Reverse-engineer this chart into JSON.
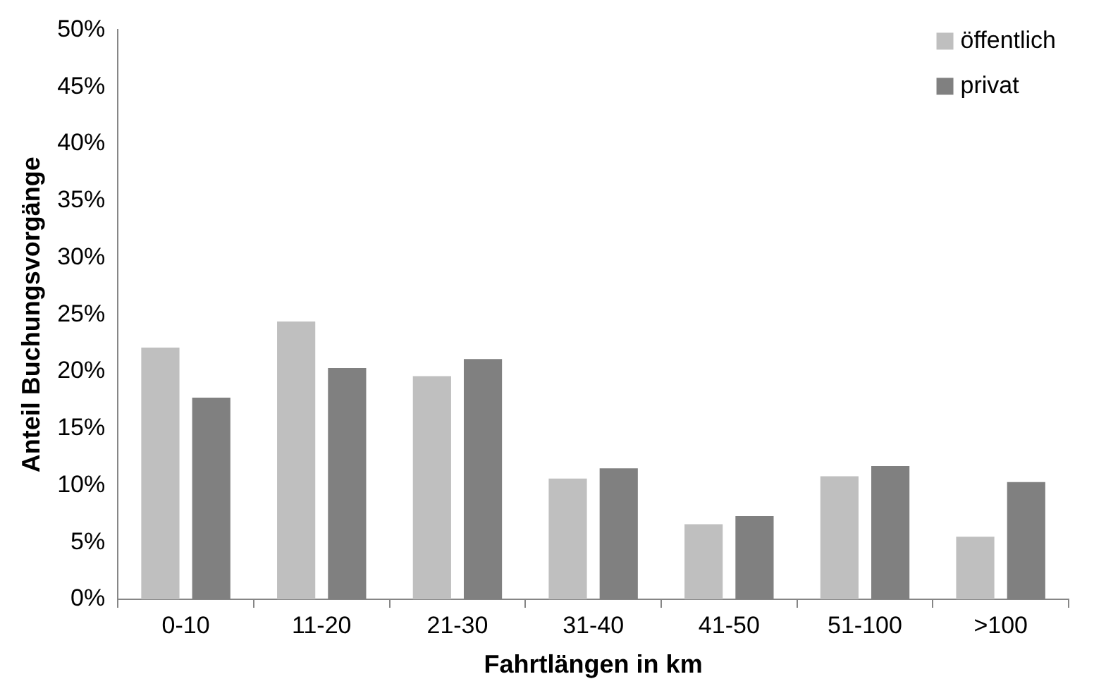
{
  "chart_data": {
    "type": "bar",
    "xlabel": "Fahrtlängen in km",
    "ylabel": "Anteil Buchungsvorgänge",
    "categories": [
      "0-10",
      "11-20",
      "21-30",
      "31-40",
      "41-50",
      "51-100",
      ">100"
    ],
    "series": [
      {
        "name": "öffentlich",
        "color": "#bfbfbf",
        "values": [
          22.1,
          24.4,
          19.6,
          10.6,
          6.6,
          10.8,
          5.5
        ]
      },
      {
        "name": "privat",
        "color": "#808080",
        "values": [
          17.7,
          20.3,
          21.1,
          11.5,
          7.3,
          11.7,
          10.3
        ]
      }
    ],
    "ylim": [
      0,
      50
    ],
    "yticks": [
      {
        "value": 0,
        "label": "0%"
      },
      {
        "value": 5,
        "label": "5%"
      },
      {
        "value": 10,
        "label": "10%"
      },
      {
        "value": 15,
        "label": "15%"
      },
      {
        "value": 20,
        "label": "20%"
      },
      {
        "value": 25,
        "label": "25%"
      },
      {
        "value": 30,
        "label": "30%"
      },
      {
        "value": 35,
        "label": "35%"
      },
      {
        "value": 40,
        "label": "40%"
      },
      {
        "value": 45,
        "label": "45%"
      },
      {
        "value": 50,
        "label": "50%"
      }
    ],
    "grid": false,
    "legend": "top right"
  }
}
